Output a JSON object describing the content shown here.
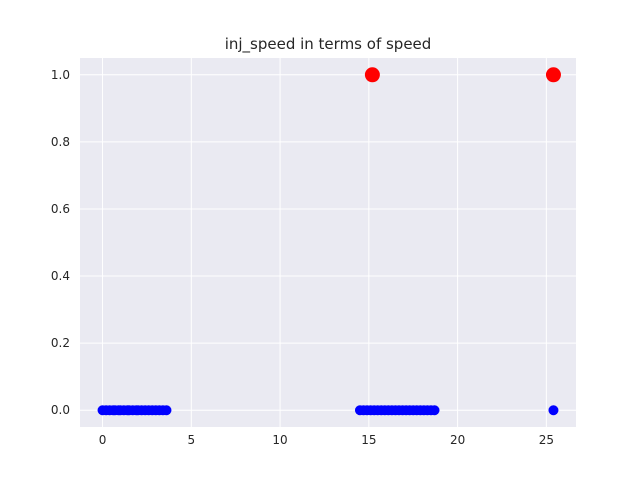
{
  "chart_data": {
    "type": "scatter",
    "title": "inj_speed in terms of speed",
    "xlabel": "",
    "ylabel": "",
    "xlim": [
      -1.27,
      26.67
    ],
    "ylim": [
      -0.05,
      1.05
    ],
    "grid": true,
    "x_ticks": [
      0,
      5,
      10,
      15,
      20,
      25
    ],
    "x_tick_labels": [
      "0",
      "5",
      "10",
      "15",
      "20",
      "25"
    ],
    "y_ticks": [
      0.0,
      0.2,
      0.4,
      0.6,
      0.8,
      1.0
    ],
    "y_tick_labels": [
      "0.0",
      "0.2",
      "0.4",
      "0.6",
      "0.8",
      "1.0"
    ],
    "colors": {
      "background": "#eaeaf2",
      "grid": "#ffffff",
      "zero": "#0000ff",
      "one": "#ff0000"
    },
    "series": [
      {
        "color": "#0000ff",
        "marker_size": "small",
        "points": [
          [
            0.0,
            0
          ],
          [
            0.2,
            0
          ],
          [
            0.4,
            0
          ],
          [
            0.6,
            0
          ],
          [
            0.7,
            0
          ],
          [
            0.9,
            0
          ],
          [
            1.0,
            0
          ],
          [
            1.2,
            0
          ],
          [
            1.4,
            0
          ],
          [
            1.5,
            0
          ],
          [
            1.7,
            0
          ],
          [
            1.9,
            0
          ],
          [
            2.0,
            0
          ],
          [
            2.2,
            0
          ],
          [
            2.4,
            0
          ],
          [
            2.6,
            0
          ],
          [
            2.8,
            0
          ],
          [
            3.0,
            0
          ],
          [
            3.2,
            0
          ],
          [
            3.4,
            0
          ],
          [
            3.6,
            0
          ],
          [
            14.5,
            0
          ],
          [
            14.7,
            0
          ],
          [
            14.9,
            0
          ],
          [
            15.1,
            0
          ],
          [
            15.3,
            0
          ],
          [
            15.5,
            0
          ],
          [
            15.7,
            0
          ],
          [
            15.9,
            0
          ],
          [
            16.1,
            0
          ],
          [
            16.3,
            0
          ],
          [
            16.5,
            0
          ],
          [
            16.7,
            0
          ],
          [
            16.9,
            0
          ],
          [
            17.1,
            0
          ],
          [
            17.3,
            0
          ],
          [
            17.5,
            0
          ],
          [
            17.7,
            0
          ],
          [
            17.9,
            0
          ],
          [
            18.1,
            0
          ],
          [
            18.3,
            0
          ],
          [
            18.5,
            0
          ],
          [
            18.7,
            0
          ],
          [
            25.4,
            0
          ]
        ]
      },
      {
        "color": "#ff0000",
        "marker_size": "large",
        "points": [
          [
            15.2,
            1
          ],
          [
            25.4,
            1
          ]
        ]
      }
    ]
  }
}
